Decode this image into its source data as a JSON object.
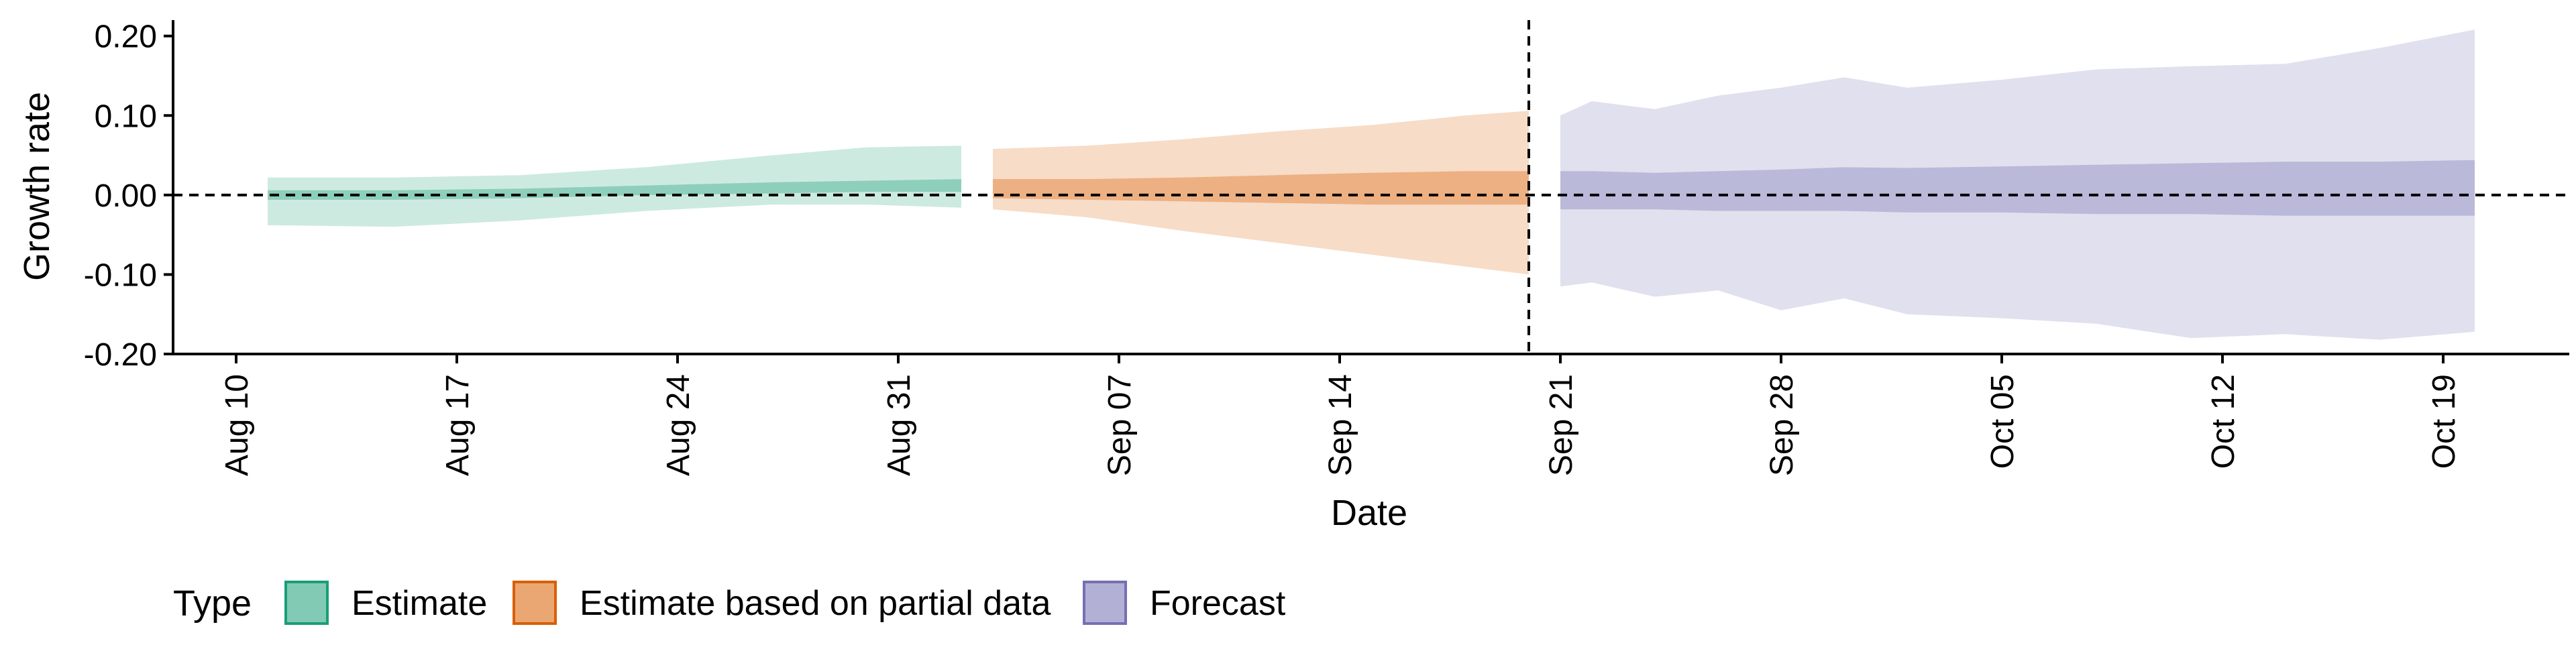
{
  "chart_data": {
    "type": "area",
    "title": "",
    "xlabel": "Date",
    "ylabel": "Growth rate",
    "ylim": [
      -0.2,
      0.22
    ],
    "xlim": [
      "2020-08-08",
      "2020-10-23"
    ],
    "y_ticks": [
      -0.2,
      -0.1,
      0.0,
      0.1,
      0.2
    ],
    "y_tick_labels": [
      "-0.20",
      "-0.10",
      "0.00",
      "0.10",
      "0.20"
    ],
    "x_ticks": [
      "2020-08-10",
      "2020-08-17",
      "2020-08-24",
      "2020-08-31",
      "2020-09-07",
      "2020-09-14",
      "2020-09-21",
      "2020-09-28",
      "2020-10-05",
      "2020-10-12",
      "2020-10-19"
    ],
    "x_tick_labels": [
      "Aug 10",
      "Aug 17",
      "Aug 24",
      "Aug 31",
      "Sep 07",
      "Sep 14",
      "Sep 21",
      "Sep 28",
      "Oct 05",
      "Oct 12",
      "Oct 19"
    ],
    "reference_lines": {
      "horizontal_y": 0,
      "vertical_x": "2020-09-20"
    },
    "grid": false,
    "legend": {
      "title": "Type",
      "placement": "bottom-left",
      "entries": [
        "Estimate",
        "Estimate based on partial data",
        "Forecast"
      ]
    },
    "series": [
      {
        "name": "Estimate",
        "color": "#1b9e77",
        "x": [
          "2020-08-11",
          "2020-08-15",
          "2020-08-19",
          "2020-08-23",
          "2020-08-27",
          "2020-08-30",
          "2020-09-02"
        ],
        "outer_upper": [
          0.022,
          0.022,
          0.025,
          0.035,
          0.05,
          0.06,
          0.062
        ],
        "outer_lower": [
          -0.038,
          -0.04,
          -0.032,
          -0.02,
          -0.012,
          -0.012,
          -0.016
        ],
        "inner_upper": [
          0.006,
          0.006,
          0.008,
          0.012,
          0.016,
          0.018,
          0.02
        ],
        "inner_lower": [
          -0.006,
          -0.006,
          -0.004,
          0.0,
          0.002,
          0.004,
          0.004
        ]
      },
      {
        "name": "Estimate based on partial data",
        "color": "#d95f02",
        "x": [
          "2020-09-03",
          "2020-09-06",
          "2020-09-09",
          "2020-09-12",
          "2020-09-15",
          "2020-09-18",
          "2020-09-20"
        ],
        "outer_upper": [
          0.058,
          0.062,
          0.07,
          0.08,
          0.088,
          0.1,
          0.106
        ],
        "outer_lower": [
          -0.018,
          -0.028,
          -0.045,
          -0.06,
          -0.075,
          -0.09,
          -0.1
        ],
        "inner_upper": [
          0.02,
          0.02,
          0.022,
          0.025,
          0.028,
          0.03,
          0.03
        ],
        "inner_lower": [
          -0.004,
          -0.006,
          -0.008,
          -0.01,
          -0.012,
          -0.012,
          -0.012
        ]
      },
      {
        "name": "Forecast",
        "color": "#7570b3",
        "x": [
          "2020-09-21",
          "2020-09-22",
          "2020-09-24",
          "2020-09-26",
          "2020-09-28",
          "2020-09-30",
          "2020-10-02",
          "2020-10-05",
          "2020-10-08",
          "2020-10-11",
          "2020-10-14",
          "2020-10-17",
          "2020-10-20"
        ],
        "outer_upper": [
          0.1,
          0.118,
          0.108,
          0.125,
          0.135,
          0.148,
          0.135,
          0.145,
          0.158,
          0.162,
          0.165,
          0.185,
          0.208
        ],
        "outer_lower": [
          -0.115,
          -0.11,
          -0.128,
          -0.12,
          -0.145,
          -0.13,
          -0.15,
          -0.155,
          -0.162,
          -0.18,
          -0.175,
          -0.182,
          -0.172
        ],
        "inner_upper": [
          0.03,
          0.03,
          0.028,
          0.03,
          0.032,
          0.035,
          0.034,
          0.036,
          0.038,
          0.04,
          0.042,
          0.042,
          0.044
        ],
        "inner_lower": [
          -0.018,
          -0.018,
          -0.018,
          -0.02,
          -0.02,
          -0.02,
          -0.022,
          -0.022,
          -0.024,
          -0.024,
          -0.026,
          -0.026,
          -0.026
        ]
      }
    ]
  }
}
